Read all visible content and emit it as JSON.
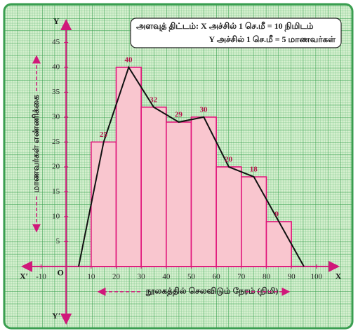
{
  "chart_data": {
    "type": "histogram",
    "scale_note": [
      "அளவுத் திட்டம்:  X அச்சில் 1 செ.மீ = 10 நிமிடம்",
      "Y அச்சில் 1 செ.மீ = 5 மாணவர்கள்"
    ],
    "x_label": "நூலகத்தில் செலவிடும் நேரம் (நிமி)",
    "y_label": "மாணவர்கள் எண்ணிக்கை",
    "axis_names": {
      "x": "X",
      "x_neg": "X′",
      "y": "Y",
      "y_neg": "Y′",
      "origin": "O"
    },
    "bins": [
      10,
      20,
      30,
      40,
      50,
      60,
      70,
      80,
      90
    ],
    "values": [
      25,
      40,
      32,
      29,
      30,
      20,
      18,
      9
    ],
    "color": "#f9c6cf",
    "edge_color": "#e0147a",
    "polygon_color": "#111111",
    "xlim": [
      -18,
      111
    ],
    "ylim": [
      -12,
      50
    ],
    "xticks": [
      -10,
      10,
      20,
      30,
      40,
      50,
      60,
      70,
      80,
      90,
      100
    ],
    "yticks": [
      5,
      10,
      15,
      20,
      25,
      30,
      35,
      40,
      45
    ],
    "grid": true
  }
}
